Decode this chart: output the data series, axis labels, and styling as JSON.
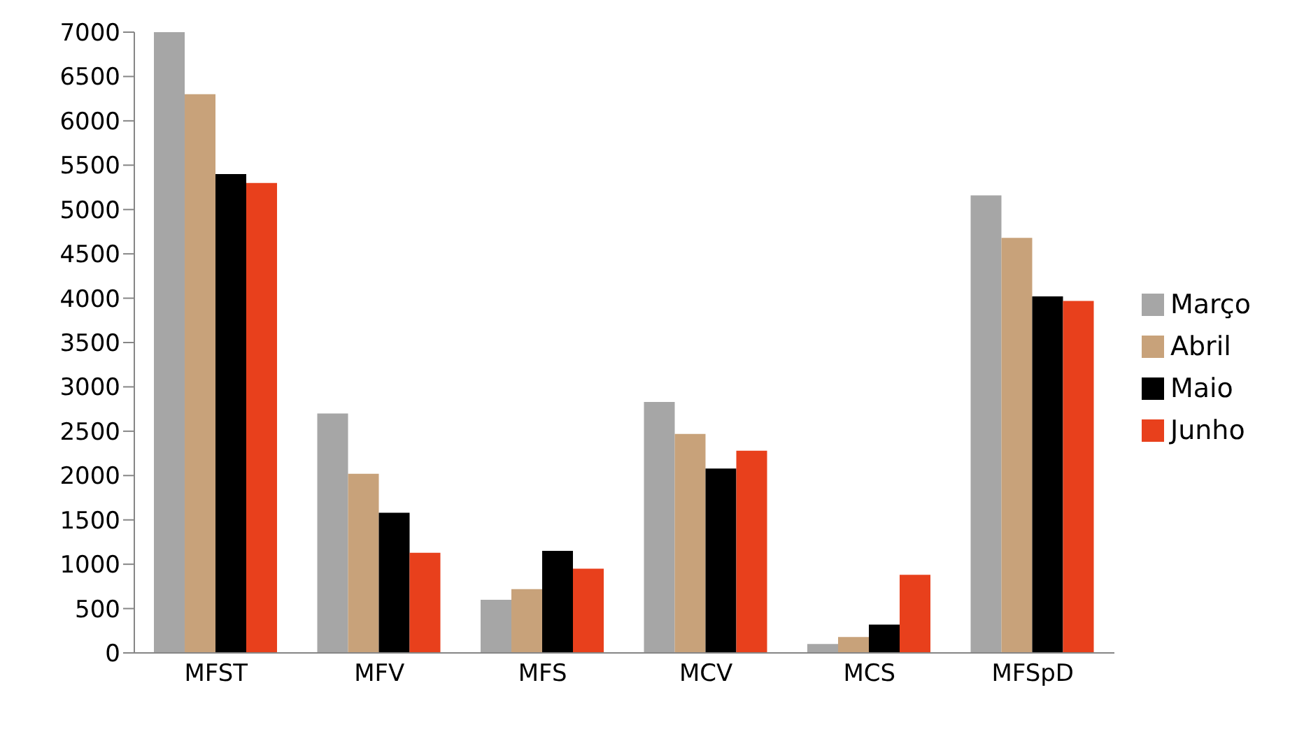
{
  "chart_data": {
    "type": "bar",
    "categories": [
      "MFST",
      "MFV",
      "MFS",
      "MCV",
      "MCS",
      "MFSpD"
    ],
    "series": [
      {
        "name": "Março",
        "color": "#a6a6a6",
        "values": [
          7000,
          2700,
          600,
          2830,
          100,
          5160
        ]
      },
      {
        "name": "Abril",
        "color": "#c8a27a",
        "values": [
          6300,
          2020,
          720,
          2470,
          180,
          4680
        ]
      },
      {
        "name": "Maio",
        "color": "#000000",
        "values": [
          5400,
          1580,
          1150,
          2080,
          320,
          4020
        ]
      },
      {
        "name": "Junho",
        "color": "#e8401c",
        "values": [
          5300,
          1130,
          950,
          2280,
          880,
          3970
        ]
      }
    ],
    "ylim": [
      0,
      7000
    ],
    "yticks": [
      0,
      500,
      1000,
      1500,
      2000,
      2500,
      3000,
      3500,
      4000,
      4500,
      5000,
      5500,
      6000,
      6500,
      7000
    ],
    "grid": false,
    "legend": "right"
  }
}
